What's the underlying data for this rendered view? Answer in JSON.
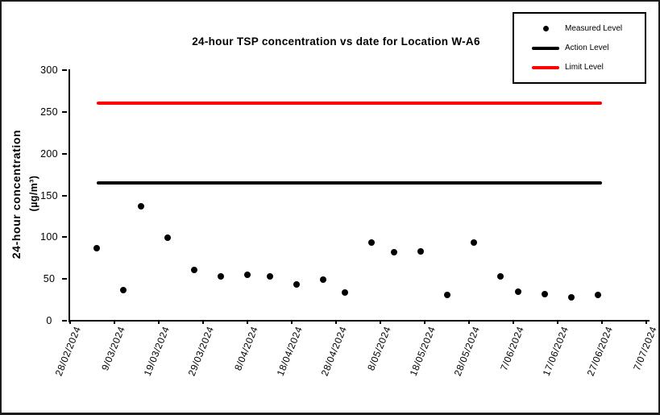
{
  "chart_data": {
    "type": "scatter",
    "title": "24-hour TSP concentration vs date for Location W-A6",
    "ylabel": "24-hour concentration",
    "ylabel_units": "(µg/m³)",
    "ylim": [
      0,
      300
    ],
    "yticks": [
      0,
      50,
      100,
      150,
      200,
      250,
      300
    ],
    "xtick_labels": [
      "28/02/2024",
      "9/03/2024",
      "19/03/2024",
      "29/03/2024",
      "8/04/2024",
      "18/04/2024",
      "28/04/2024",
      "8/05/2024",
      "18/05/2024",
      "28/05/2024",
      "7/06/2024",
      "17/06/2024",
      "27/06/2024",
      "7/07/2024"
    ],
    "x_range": [
      "28/02/2024",
      "7/07/2024"
    ],
    "grid": false,
    "legend_position": "top-right",
    "background_color": "#ffffff",
    "series": [
      {
        "name": "Measured Level",
        "type": "scatter",
        "marker": "dot",
        "color": "#000000",
        "points": [
          {
            "date": "5/03/2024",
            "value": 87
          },
          {
            "date": "11/03/2024",
            "value": 37
          },
          {
            "date": "15/03/2024",
            "value": 137
          },
          {
            "date": "21/03/2024",
            "value": 99
          },
          {
            "date": "27/03/2024",
            "value": 61
          },
          {
            "date": "2/04/2024",
            "value": 53
          },
          {
            "date": "8/04/2024",
            "value": 55
          },
          {
            "date": "13/04/2024",
            "value": 53
          },
          {
            "date": "19/04/2024",
            "value": 43
          },
          {
            "date": "25/04/2024",
            "value": 49
          },
          {
            "date": "30/04/2024",
            "value": 34
          },
          {
            "date": "6/05/2024",
            "value": 94
          },
          {
            "date": "11/05/2024",
            "value": 82
          },
          {
            "date": "17/05/2024",
            "value": 83
          },
          {
            "date": "23/05/2024",
            "value": 31
          },
          {
            "date": "29/05/2024",
            "value": 94
          },
          {
            "date": "4/06/2024",
            "value": 53
          },
          {
            "date": "8/06/2024",
            "value": 35
          },
          {
            "date": "14/06/2024",
            "value": 32
          },
          {
            "date": "20/06/2024",
            "value": 28
          },
          {
            "date": "26/06/2024",
            "value": 31
          }
        ]
      },
      {
        "name": "Action Level",
        "type": "hline",
        "marker": "line",
        "color": "#000000",
        "value": 165,
        "start_date": "5/03/2024",
        "end_date": "27/06/2024"
      },
      {
        "name": "Limit Level",
        "type": "hline",
        "marker": "line",
        "color": "#ff0000",
        "value": 260,
        "start_date": "5/03/2024",
        "end_date": "27/06/2024"
      }
    ]
  }
}
